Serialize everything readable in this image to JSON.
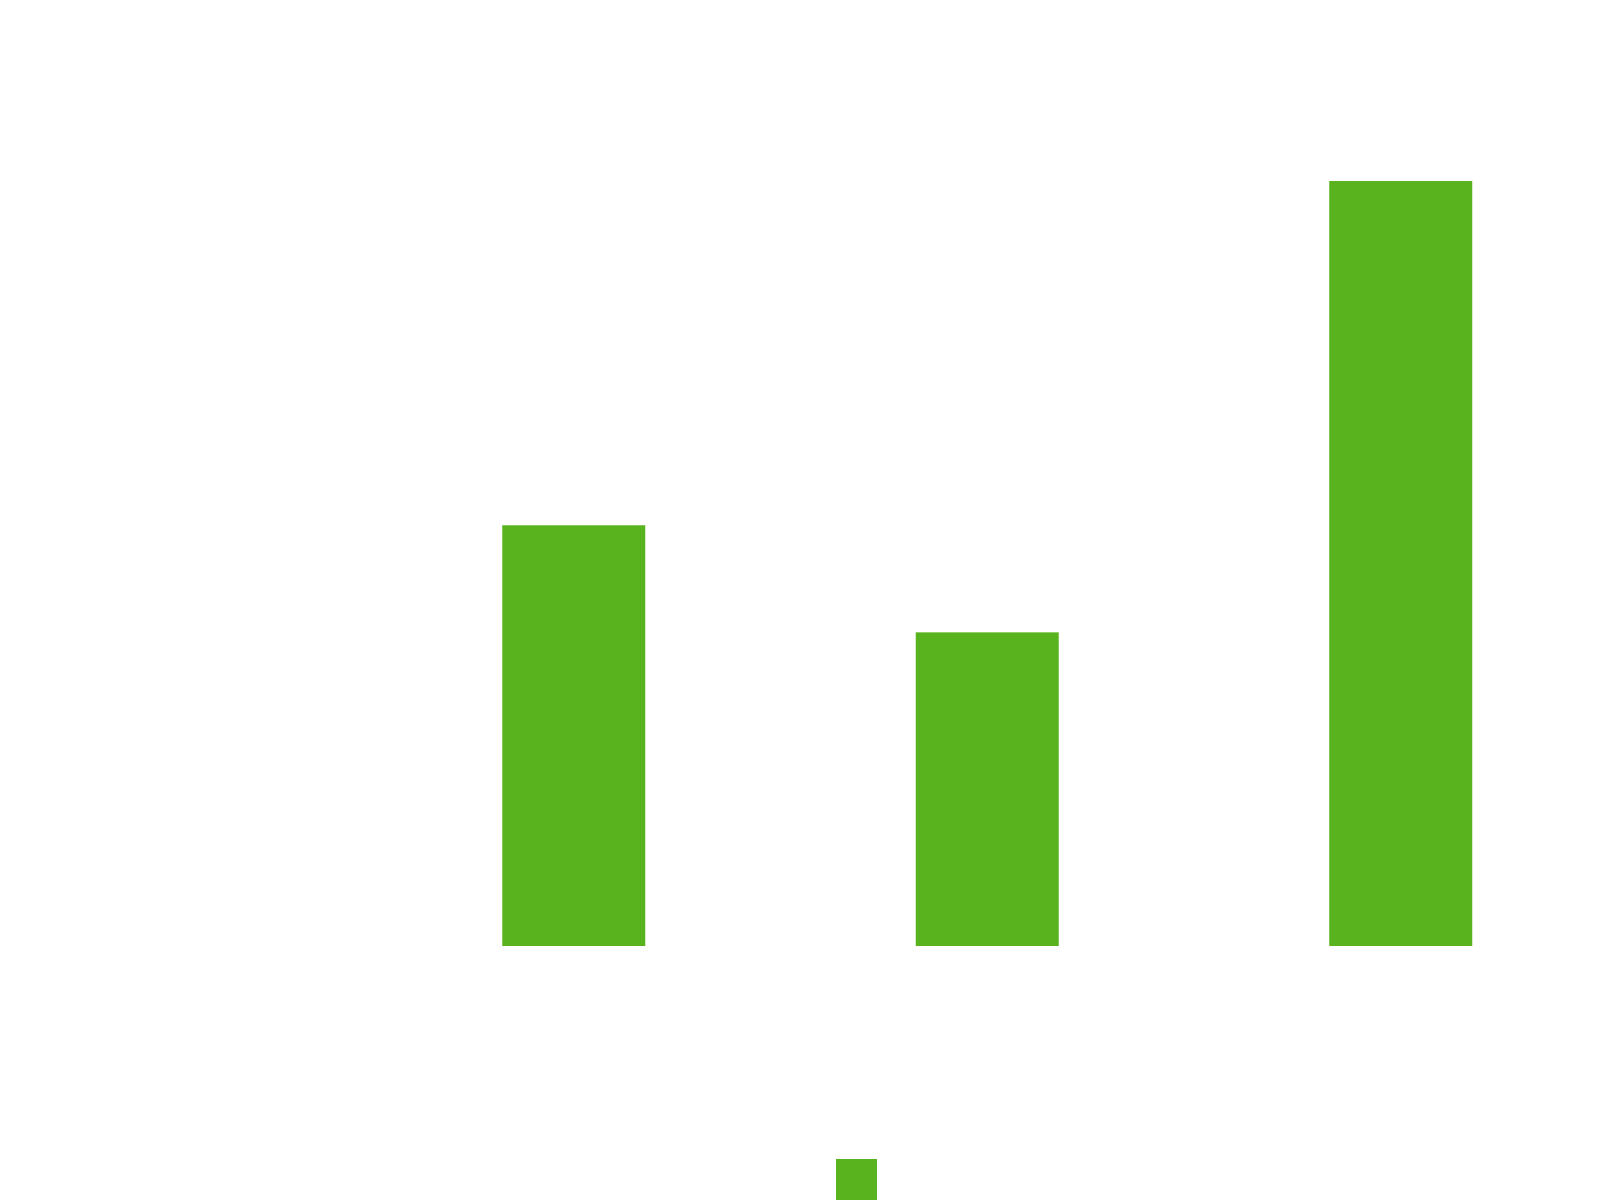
{
  "chart_data": {
    "type": "bar",
    "categories": [
      null,
      null,
      null
    ],
    "series": [
      {
        "color": "#58b31e",
        "values": [
          55,
          41,
          100
        ]
      }
    ],
    "ylim": [
      0,
      100
    ],
    "grid": false,
    "legend": "bottom"
  }
}
